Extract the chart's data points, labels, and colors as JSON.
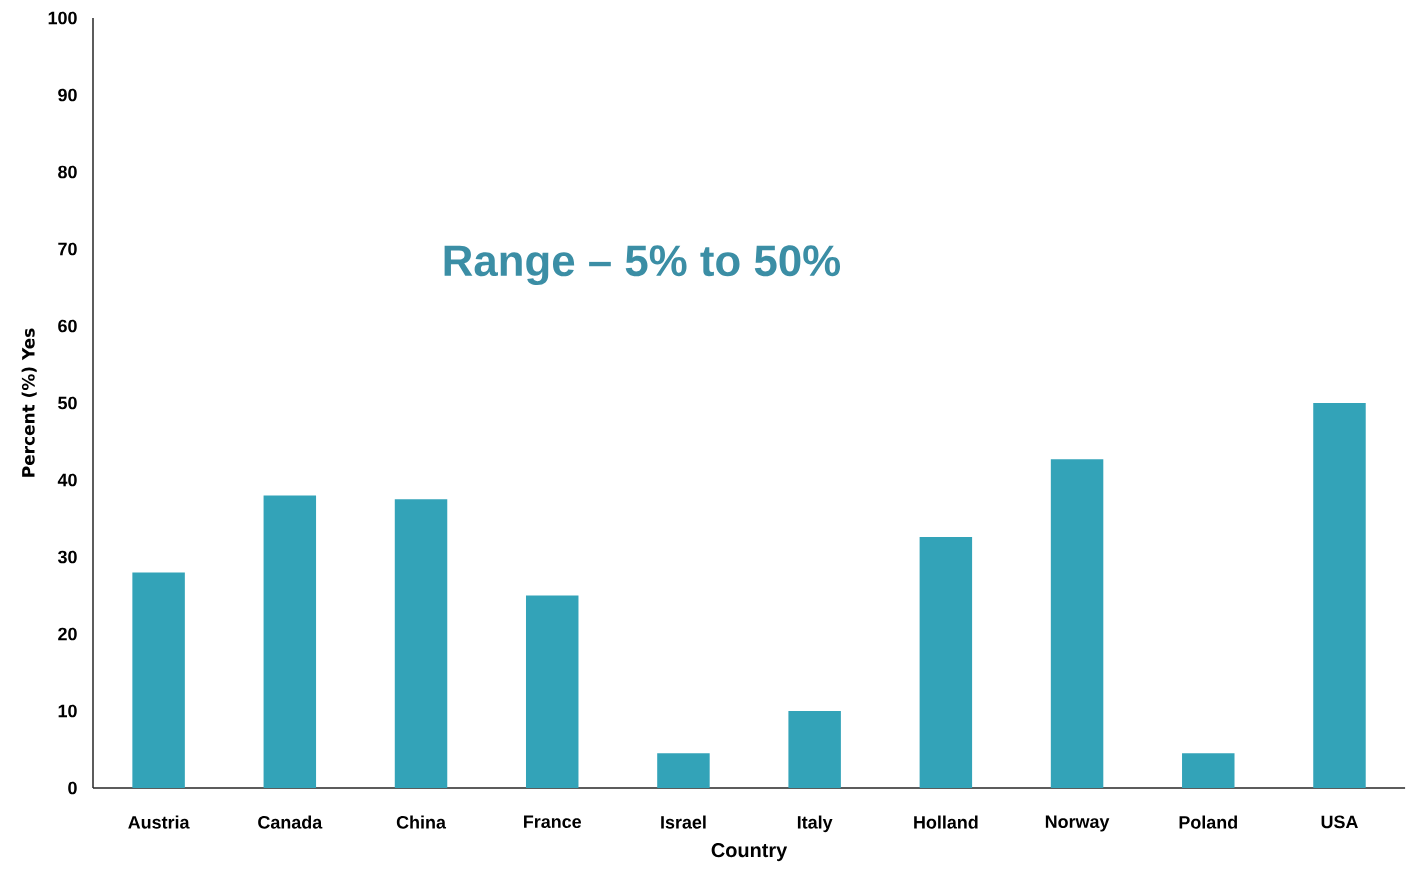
{
  "chart_data": {
    "type": "bar",
    "xlabel": "Country",
    "ylabel": "Percent (%) Yes",
    "categories": [
      "Austria",
      "Canada",
      "China",
      "France",
      "Israel",
      "Italy",
      "Holland",
      "Norway",
      "Poland",
      "USA"
    ],
    "values": [
      28,
      38,
      37.5,
      25,
      4.5,
      10,
      32.6,
      42.7,
      4.5,
      50
    ],
    "color": "#33a3b8",
    "ylim": [
      0,
      100
    ],
    "yticks": [
      0,
      10,
      20,
      30,
      40,
      50,
      60,
      70,
      80,
      90,
      100
    ],
    "annotations": [
      "Range – 5% to 50%"
    ]
  }
}
